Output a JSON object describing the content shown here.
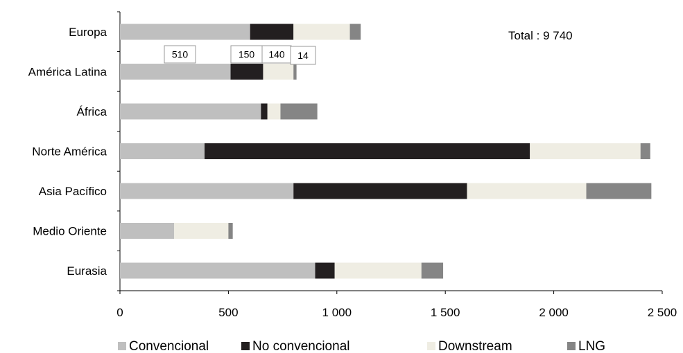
{
  "chart_data": {
    "type": "bar",
    "orientation": "horizontal",
    "stacked": true,
    "categories": [
      "Europa",
      "América Latina",
      "África",
      "Norte América",
      "Asia Pacífico",
      "Medio Oriente",
      "Eurasia"
    ],
    "series": [
      {
        "name": "Convencional",
        "color": "#bfbfbf",
        "values": [
          600,
          510,
          650,
          390,
          800,
          250,
          900
        ]
      },
      {
        "name": "No convencional",
        "color": "#231f20",
        "values": [
          200,
          150,
          30,
          1500,
          800,
          0,
          90
        ]
      },
      {
        "name": "Downstream",
        "color": "#efede3",
        "values": [
          260,
          140,
          60,
          510,
          550,
          250,
          400
        ]
      },
      {
        "name": "LNG",
        "color": "#858585",
        "values": [
          50,
          14,
          170,
          45,
          300,
          20,
          100
        ]
      }
    ],
    "xlim": [
      0,
      2500
    ],
    "xticks": [
      0,
      500,
      1000,
      1500,
      2000,
      2500
    ],
    "xtick_labels": [
      "0",
      "500",
      "1 000",
      "1 500",
      "2 000",
      "2 500"
    ],
    "annotation_total": "Total : 9 740",
    "callouts": [
      {
        "category": "América Latina",
        "series": "Convencional",
        "text": "510"
      },
      {
        "category": "América Latina",
        "series": "No convencional",
        "text": "150"
      },
      {
        "category": "América Latina",
        "series": "Downstream",
        "text": "140"
      },
      {
        "category": "América Latina",
        "series": "LNG",
        "text": "14"
      }
    ],
    "legend_position": "bottom",
    "grid": false
  }
}
